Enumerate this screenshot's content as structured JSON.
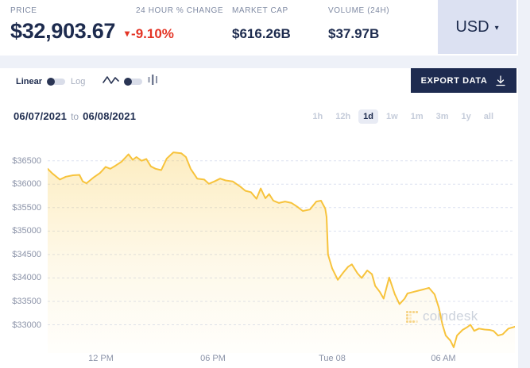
{
  "header": {
    "stats": [
      {
        "label": "PRICE",
        "value": "$32,903.67"
      },
      {
        "label": "24 HOUR % CHANGE",
        "value": "-9.10%"
      },
      {
        "label": "MARKET CAP",
        "value": "$616.26B"
      },
      {
        "label": "VOLUME (24H)",
        "value": "$37.97B"
      }
    ],
    "currency": {
      "label": "USD"
    }
  },
  "icons": {
    "down_triangle": "▾",
    "caret_down": "▾"
  },
  "toolbar": {
    "scale_left_label": "Linear",
    "scale_right_label": "Log",
    "export_label": "EXPORT DATA"
  },
  "range": {
    "from": "06/07/2021",
    "joiner": "to",
    "to": "06/08/2021",
    "buttons": [
      {
        "label": "1h",
        "active": false
      },
      {
        "label": "12h",
        "active": false
      },
      {
        "label": "1d",
        "active": true
      },
      {
        "label": "1w",
        "active": false
      },
      {
        "label": "1m",
        "active": false
      },
      {
        "label": "3m",
        "active": false
      },
      {
        "label": "1y",
        "active": false
      },
      {
        "label": "all",
        "active": false
      }
    ]
  },
  "watermark": {
    "text": "coindesk"
  },
  "colors": {
    "navy": "#1d2b4e",
    "negative_red": "#e43425",
    "line_gold": "#f7c33c",
    "fill_gold": "#f8c946",
    "page_bg": "#eef1f8",
    "usd_btn_bg": "#dce1f2",
    "export_btn_bg": "#1e2b50",
    "grid": "#dce1f0"
  },
  "chart_data": {
    "type": "area",
    "title": "",
    "xlabel": "",
    "ylabel": "",
    "grid": "dashed-horizontal",
    "ylim": [
      32400,
      36800
    ],
    "yticks": [
      36500,
      36000,
      35500,
      35000,
      34500,
      34000,
      33500,
      33000
    ],
    "ytick_labels": [
      "$36500",
      "$36000",
      "$35500",
      "$35000",
      "$34500",
      "$34000",
      "$33500",
      "$33000"
    ],
    "xticks": [
      {
        "t": 0.114,
        "label": "12 PM"
      },
      {
        "t": 0.354,
        "label": "06 PM"
      },
      {
        "t": 0.609,
        "label": "Tue 08"
      },
      {
        "t": 0.847,
        "label": "06 AM"
      }
    ],
    "series": [
      {
        "points": [
          [
            0.0,
            36330
          ],
          [
            0.01,
            36230
          ],
          [
            0.026,
            36100
          ],
          [
            0.039,
            36160
          ],
          [
            0.054,
            36190
          ],
          [
            0.068,
            36200
          ],
          [
            0.075,
            36060
          ],
          [
            0.083,
            36020
          ],
          [
            0.099,
            36150
          ],
          [
            0.112,
            36240
          ],
          [
            0.124,
            36370
          ],
          [
            0.134,
            36330
          ],
          [
            0.146,
            36400
          ],
          [
            0.158,
            36480
          ],
          [
            0.173,
            36640
          ],
          [
            0.182,
            36520
          ],
          [
            0.19,
            36580
          ],
          [
            0.201,
            36500
          ],
          [
            0.211,
            36540
          ],
          [
            0.221,
            36380
          ],
          [
            0.231,
            36330
          ],
          [
            0.243,
            36300
          ],
          [
            0.255,
            36550
          ],
          [
            0.269,
            36680
          ],
          [
            0.286,
            36660
          ],
          [
            0.296,
            36580
          ],
          [
            0.306,
            36330
          ],
          [
            0.32,
            36120
          ],
          [
            0.335,
            36100
          ],
          [
            0.345,
            36010
          ],
          [
            0.357,
            36060
          ],
          [
            0.369,
            36120
          ],
          [
            0.381,
            36080
          ],
          [
            0.396,
            36060
          ],
          [
            0.412,
            35950
          ],
          [
            0.423,
            35860
          ],
          [
            0.435,
            35830
          ],
          [
            0.447,
            35690
          ],
          [
            0.456,
            35910
          ],
          [
            0.466,
            35700
          ],
          [
            0.474,
            35790
          ],
          [
            0.483,
            35650
          ],
          [
            0.495,
            35600
          ],
          [
            0.508,
            35630
          ],
          [
            0.522,
            35600
          ],
          [
            0.534,
            35520
          ],
          [
            0.546,
            35430
          ],
          [
            0.561,
            35460
          ],
          [
            0.575,
            35630
          ],
          [
            0.585,
            35650
          ],
          [
            0.594,
            35480
          ],
          [
            0.597,
            35300
          ],
          [
            0.6,
            34500
          ],
          [
            0.609,
            34200
          ],
          [
            0.621,
            33960
          ],
          [
            0.633,
            34120
          ],
          [
            0.643,
            34240
          ],
          [
            0.651,
            34290
          ],
          [
            0.663,
            34100
          ],
          [
            0.672,
            34000
          ],
          [
            0.684,
            34160
          ],
          [
            0.694,
            34080
          ],
          [
            0.701,
            33830
          ],
          [
            0.711,
            33700
          ],
          [
            0.719,
            33560
          ],
          [
            0.731,
            34010
          ],
          [
            0.743,
            33650
          ],
          [
            0.753,
            33440
          ],
          [
            0.764,
            33560
          ],
          [
            0.77,
            33670
          ],
          [
            0.782,
            33700
          ],
          [
            0.794,
            33730
          ],
          [
            0.806,
            33760
          ],
          [
            0.816,
            33790
          ],
          [
            0.828,
            33650
          ],
          [
            0.837,
            33370
          ],
          [
            0.845,
            33000
          ],
          [
            0.852,
            32770
          ],
          [
            0.862,
            32660
          ],
          [
            0.869,
            32520
          ],
          [
            0.876,
            32770
          ],
          [
            0.888,
            32890
          ],
          [
            0.898,
            32950
          ],
          [
            0.905,
            33000
          ],
          [
            0.913,
            32870
          ],
          [
            0.923,
            32920
          ],
          [
            0.935,
            32900
          ],
          [
            0.946,
            32890
          ],
          [
            0.954,
            32870
          ],
          [
            0.964,
            32770
          ],
          [
            0.974,
            32800
          ],
          [
            0.986,
            32920
          ],
          [
            1.0,
            32960
          ]
        ]
      }
    ]
  }
}
